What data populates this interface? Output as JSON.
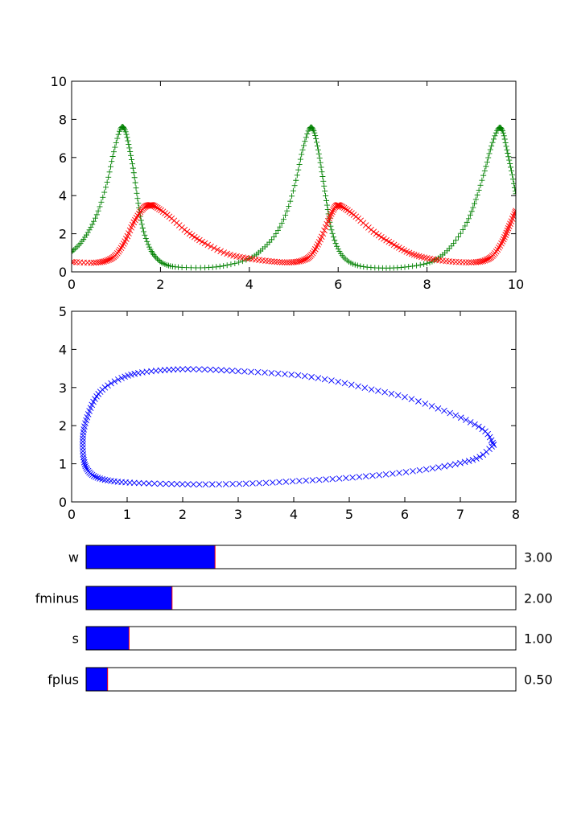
{
  "chart_data": [
    {
      "type": "scatter",
      "title": "",
      "xlabel": "",
      "ylabel": "",
      "xlim": [
        0,
        10
      ],
      "ylim": [
        0,
        10
      ],
      "xticks": [
        "0",
        "2",
        "4",
        "6",
        "8",
        "10"
      ],
      "yticks": [
        "0",
        "2",
        "4",
        "6",
        "8",
        "10"
      ],
      "grid": false,
      "series": [
        {
          "marker": "+",
          "color": "#008000",
          "points": [
            [
              0,
              1.05
            ],
            [
              0.2,
              1.5
            ],
            [
              0.4,
              2.2
            ],
            [
              0.6,
              3.2
            ],
            [
              0.8,
              4.7
            ],
            [
              0.95,
              6.3
            ],
            [
              1.1,
              7.5
            ],
            [
              1.2,
              7.45
            ],
            [
              1.3,
              6.5
            ],
            [
              1.4,
              5.2
            ],
            [
              1.5,
              3.6
            ],
            [
              1.6,
              2.3
            ],
            [
              1.75,
              1.3
            ],
            [
              1.9,
              0.75
            ],
            [
              2.1,
              0.4
            ],
            [
              2.4,
              0.25
            ],
            [
              3.0,
              0.22
            ],
            [
              3.5,
              0.35
            ],
            [
              4.0,
              0.7
            ],
            [
              4.3,
              1.2
            ],
            [
              4.6,
              2.0
            ],
            [
              4.85,
              3.2
            ],
            [
              5.05,
              4.8
            ],
            [
              5.2,
              6.4
            ],
            [
              5.35,
              7.5
            ],
            [
              5.45,
              7.4
            ],
            [
              5.55,
              6.4
            ],
            [
              5.65,
              5.0
            ],
            [
              5.75,
              3.5
            ],
            [
              5.85,
              2.2
            ],
            [
              6.0,
              1.2
            ],
            [
              6.2,
              0.6
            ],
            [
              6.5,
              0.3
            ],
            [
              7.0,
              0.2
            ],
            [
              7.5,
              0.25
            ],
            [
              8.0,
              0.45
            ],
            [
              8.3,
              0.8
            ],
            [
              8.6,
              1.5
            ],
            [
              8.9,
              2.6
            ],
            [
              9.1,
              3.8
            ],
            [
              9.3,
              5.3
            ],
            [
              9.45,
              6.6
            ],
            [
              9.6,
              7.5
            ],
            [
              9.7,
              7.4
            ],
            [
              9.8,
              6.4
            ],
            [
              9.9,
              5.3
            ],
            [
              10.0,
              4.1
            ]
          ]
        },
        {
          "marker": "x",
          "color": "#ff0000",
          "points": [
            [
              0,
              0.52
            ],
            [
              0.5,
              0.48
            ],
            [
              0.8,
              0.6
            ],
            [
              1.0,
              0.9
            ],
            [
              1.2,
              1.6
            ],
            [
              1.4,
              2.6
            ],
            [
              1.6,
              3.3
            ],
            [
              1.75,
              3.5
            ],
            [
              1.9,
              3.4
            ],
            [
              2.2,
              2.9
            ],
            [
              2.6,
              2.1
            ],
            [
              3.0,
              1.5
            ],
            [
              3.5,
              0.95
            ],
            [
              4.0,
              0.7
            ],
            [
              4.5,
              0.55
            ],
            [
              4.9,
              0.5
            ],
            [
              5.2,
              0.6
            ],
            [
              5.4,
              0.9
            ],
            [
              5.6,
              1.7
            ],
            [
              5.8,
              2.8
            ],
            [
              5.95,
              3.45
            ],
            [
              6.1,
              3.4
            ],
            [
              6.4,
              2.9
            ],
            [
              6.8,
              2.1
            ],
            [
              7.2,
              1.5
            ],
            [
              7.6,
              1.0
            ],
            [
              8.0,
              0.72
            ],
            [
              8.5,
              0.55
            ],
            [
              9.0,
              0.5
            ],
            [
              9.3,
              0.6
            ],
            [
              9.5,
              0.9
            ],
            [
              9.7,
              1.6
            ],
            [
              9.85,
              2.4
            ],
            [
              10.0,
              3.2
            ]
          ]
        }
      ]
    },
    {
      "type": "scatter",
      "title": "",
      "xlabel": "",
      "ylabel": "",
      "xlim": [
        0,
        8
      ],
      "ylim": [
        0,
        5
      ],
      "xticks": [
        "0",
        "1",
        "2",
        "3",
        "4",
        "5",
        "6",
        "7",
        "8"
      ],
      "yticks": [
        "0",
        "1",
        "2",
        "3",
        "4",
        "5"
      ],
      "grid": false,
      "series": [
        {
          "marker": "x",
          "color": "#0000ff",
          "points": [
            [
              7.6,
              1.5
            ],
            [
              7.45,
              1.85
            ],
            [
              7.1,
              2.15
            ],
            [
              6.6,
              2.45
            ],
            [
              6.0,
              2.75
            ],
            [
              5.4,
              2.95
            ],
            [
              4.8,
              3.15
            ],
            [
              4.2,
              3.3
            ],
            [
              3.6,
              3.38
            ],
            [
              3.0,
              3.43
            ],
            [
              2.5,
              3.47
            ],
            [
              2.0,
              3.48
            ],
            [
              1.6,
              3.45
            ],
            [
              1.2,
              3.38
            ],
            [
              0.9,
              3.25
            ],
            [
              0.6,
              3.0
            ],
            [
              0.42,
              2.7
            ],
            [
              0.3,
              2.3
            ],
            [
              0.22,
              1.9
            ],
            [
              0.2,
              1.5
            ],
            [
              0.22,
              1.1
            ],
            [
              0.28,
              0.85
            ],
            [
              0.4,
              0.68
            ],
            [
              0.6,
              0.58
            ],
            [
              0.9,
              0.52
            ],
            [
              1.3,
              0.49
            ],
            [
              1.8,
              0.47
            ],
            [
              2.3,
              0.46
            ],
            [
              2.9,
              0.47
            ],
            [
              3.5,
              0.5
            ],
            [
              4.1,
              0.55
            ],
            [
              4.7,
              0.6
            ],
            [
              5.3,
              0.67
            ],
            [
              5.9,
              0.76
            ],
            [
              6.5,
              0.88
            ],
            [
              7.0,
              1.02
            ],
            [
              7.35,
              1.18
            ],
            [
              7.6,
              1.5
            ]
          ]
        }
      ]
    }
  ],
  "sliders": [
    {
      "label": "w",
      "value": 3.0,
      "max": 10,
      "display": "3.00"
    },
    {
      "label": "fminus",
      "value": 2.0,
      "max": 10,
      "display": "2.00"
    },
    {
      "label": "s",
      "value": 1.0,
      "max": 10,
      "display": "1.00"
    },
    {
      "label": "fplus",
      "value": 0.5,
      "max": 10,
      "display": "0.50"
    }
  ]
}
